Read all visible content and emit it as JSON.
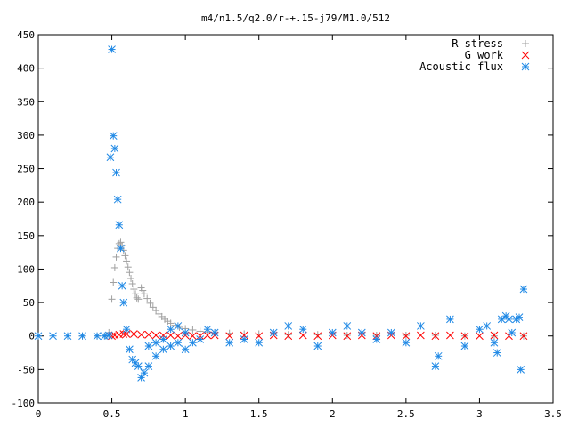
{
  "chart_data": {
    "type": "scatter",
    "title": "m4/n1.5/q2.0/r-+.15-j79/M1.0/512",
    "xlabel": "",
    "ylabel": "",
    "xlim": [
      0,
      3.5
    ],
    "ylim": [
      -100,
      450
    ],
    "x_ticks": [
      0,
      0.5,
      1,
      1.5,
      2,
      2.5,
      3,
      3.5
    ],
    "x_tick_labels": [
      "0",
      "0.5",
      "1",
      "1.5",
      "2",
      "2.5",
      "3",
      "3.5"
    ],
    "y_ticks": [
      -100,
      -50,
      0,
      50,
      100,
      150,
      200,
      250,
      300,
      350,
      400,
      450
    ],
    "y_tick_labels": [
      "-100",
      "-50",
      "0",
      "50",
      "100",
      "150",
      "200",
      "250",
      "300",
      "350",
      "400",
      "450"
    ],
    "grid": false,
    "legend_position": "top-right",
    "series": [
      {
        "name": "R stress",
        "marker": "plus",
        "color": "#a0a0a0",
        "x": [
          0.3,
          0.4,
          0.46,
          0.48,
          0.5,
          0.51,
          0.52,
          0.53,
          0.54,
          0.55,
          0.56,
          0.57,
          0.58,
          0.59,
          0.6,
          0.61,
          0.62,
          0.63,
          0.64,
          0.65,
          0.66,
          0.67,
          0.68,
          0.7,
          0.71,
          0.72,
          0.74,
          0.76,
          0.78,
          0.8,
          0.82,
          0.84,
          0.86,
          0.88,
          0.9,
          0.93,
          0.96,
          1.0,
          1.05,
          1.1,
          1.15,
          1.2,
          1.3,
          1.4,
          1.5,
          1.7,
          1.9,
          2.1,
          2.3,
          2.5,
          2.7,
          2.9,
          3.1,
          3.3
        ],
        "y": [
          0,
          0,
          0,
          5,
          55,
          80,
          102,
          118,
          131,
          138,
          140,
          135,
          128,
          120,
          112,
          103,
          95,
          86,
          78,
          70,
          63,
          57,
          55,
          72,
          68,
          63,
          56,
          49,
          43,
          38,
          33,
          29,
          25,
          22,
          19,
          16,
          13,
          11,
          9,
          7,
          6,
          5,
          4,
          3,
          3,
          2,
          2,
          1,
          1,
          1,
          1,
          0,
          0,
          0
        ]
      },
      {
        "name": "G work",
        "marker": "cross",
        "color": "#ff0000",
        "x": [
          0.5,
          0.52,
          0.55,
          0.58,
          0.6,
          0.65,
          0.7,
          0.75,
          0.8,
          0.85,
          0.9,
          0.95,
          1.0,
          1.05,
          1.1,
          1.15,
          1.2,
          1.3,
          1.4,
          1.5,
          1.6,
          1.7,
          1.8,
          1.9,
          2.0,
          2.1,
          2.2,
          2.3,
          2.4,
          2.5,
          2.6,
          2.7,
          2.8,
          2.9,
          3.0,
          3.1,
          3.2,
          3.3
        ],
        "y": [
          0,
          1,
          2,
          3,
          3,
          3,
          2,
          2,
          1,
          1,
          1,
          0,
          1,
          0,
          0,
          1,
          1,
          0,
          1,
          0,
          1,
          0,
          1,
          0,
          1,
          0,
          1,
          0,
          1,
          0,
          1,
          0,
          1,
          0,
          0,
          1,
          0,
          0
        ]
      },
      {
        "name": "Acoustic flux",
        "marker": "star",
        "color": "#1e88e5",
        "x": [
          0.0,
          0.1,
          0.2,
          0.3,
          0.4,
          0.45,
          0.48,
          0.49,
          0.5,
          0.51,
          0.52,
          0.53,
          0.54,
          0.55,
          0.56,
          0.57,
          0.58,
          0.6,
          0.62,
          0.64,
          0.66,
          0.68,
          0.7,
          0.72,
          0.75,
          0.8,
          0.85,
          0.9,
          0.95,
          1.0,
          0.75,
          0.8,
          0.85,
          0.9,
          0.95,
          1.0,
          1.05,
          1.1,
          1.15,
          1.2,
          1.3,
          1.4,
          1.5,
          1.6,
          1.7,
          1.8,
          1.9,
          2.0,
          2.1,
          2.2,
          2.3,
          2.4,
          2.5,
          2.6,
          2.7,
          2.72,
          2.8,
          2.9,
          3.0,
          3.05,
          3.1,
          3.12,
          3.15,
          3.18,
          3.2,
          3.22,
          3.25,
          3.27,
          3.28,
          3.3
        ],
        "y": [
          0,
          0,
          0,
          0,
          0,
          0,
          1,
          267,
          428,
          299,
          280,
          244,
          204,
          166,
          131,
          75,
          50,
          10,
          -20,
          -35,
          -40,
          -45,
          -62,
          -55,
          -45,
          -30,
          -20,
          -15,
          -10,
          -20,
          -15,
          -10,
          -5,
          10,
          15,
          5,
          -10,
          -5,
          10,
          5,
          -10,
          -5,
          -10,
          5,
          15,
          10,
          -15,
          5,
          15,
          5,
          -5,
          5,
          -10,
          15,
          -45,
          -30,
          25,
          -15,
          10,
          15,
          -10,
          -25,
          25,
          30,
          25,
          5,
          25,
          28,
          -50,
          70
        ]
      }
    ]
  }
}
